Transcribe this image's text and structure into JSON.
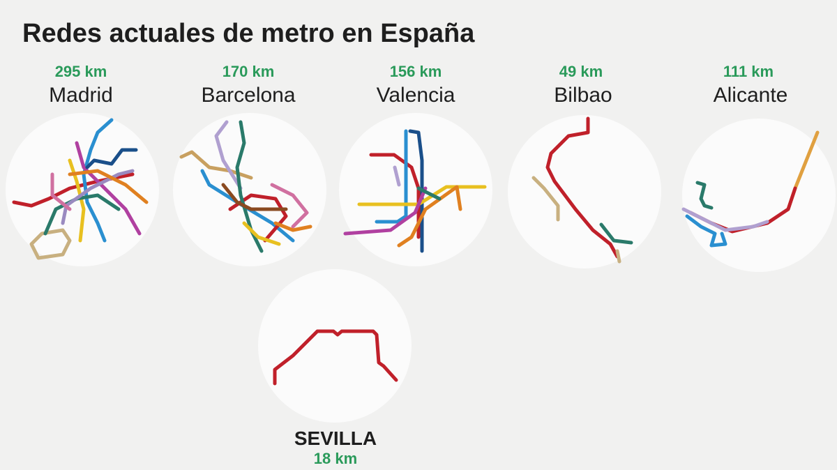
{
  "header": {
    "title": "Redes actuales de metro en España"
  },
  "networks": [
    {
      "name": "Madrid",
      "length": "295 km"
    },
    {
      "name": "Barcelona",
      "length": "170 km"
    },
    {
      "name": "Valencia",
      "length": "156 km"
    },
    {
      "name": "Bilbao",
      "length": "49 km"
    },
    {
      "name": "Alicante",
      "length": "111 km"
    },
    {
      "name": "SEVILLA",
      "length": "18 km"
    }
  ]
}
